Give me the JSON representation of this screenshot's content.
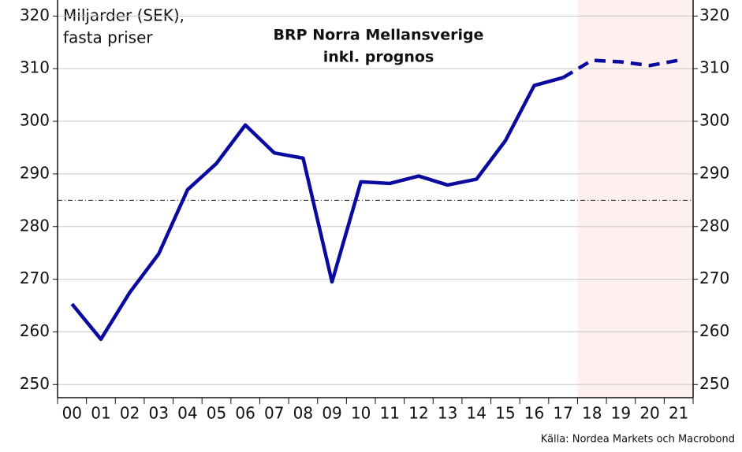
{
  "chart_data": {
    "type": "line",
    "title": [
      "BRP Norra Mellansverige",
      "inkl. prognos"
    ],
    "y_label": [
      "Miljarder (SEK),",
      "fasta priser"
    ],
    "source": "Källa: Nordea Markets och Macrobond",
    "categories": [
      "00",
      "01",
      "02",
      "03",
      "04",
      "05",
      "06",
      "07",
      "08",
      "09",
      "10",
      "11",
      "12",
      "13",
      "14",
      "15",
      "16",
      "17",
      "18",
      "19",
      "20",
      "21"
    ],
    "series": [
      {
        "name": "BRP",
        "color": "#0a0a9e",
        "dashed": false,
        "values": [
          265.3,
          258.6,
          267.5,
          274.8,
          287,
          292,
          299.3,
          294,
          293,
          269.5,
          288.5,
          288.2,
          289.6,
          287.9,
          289,
          296.3,
          306.8,
          308.3,
          null,
          null,
          null,
          null
        ]
      },
      {
        "name": "Prognos",
        "color": "#0a0a9e",
        "dashed": true,
        "values": [
          null,
          null,
          null,
          null,
          null,
          null,
          null,
          null,
          null,
          null,
          null,
          null,
          null,
          null,
          null,
          null,
          null,
          308.3,
          311.6,
          311.3,
          310.6,
          311.6
        ]
      }
    ],
    "shaded_from": "18",
    "shade_color": "#fdf0ee",
    "reference_line": 285,
    "ylim": [
      247.5,
      322
    ],
    "yticks": [
      250,
      260,
      270,
      280,
      290,
      300,
      310,
      320
    ],
    "grid": true
  }
}
